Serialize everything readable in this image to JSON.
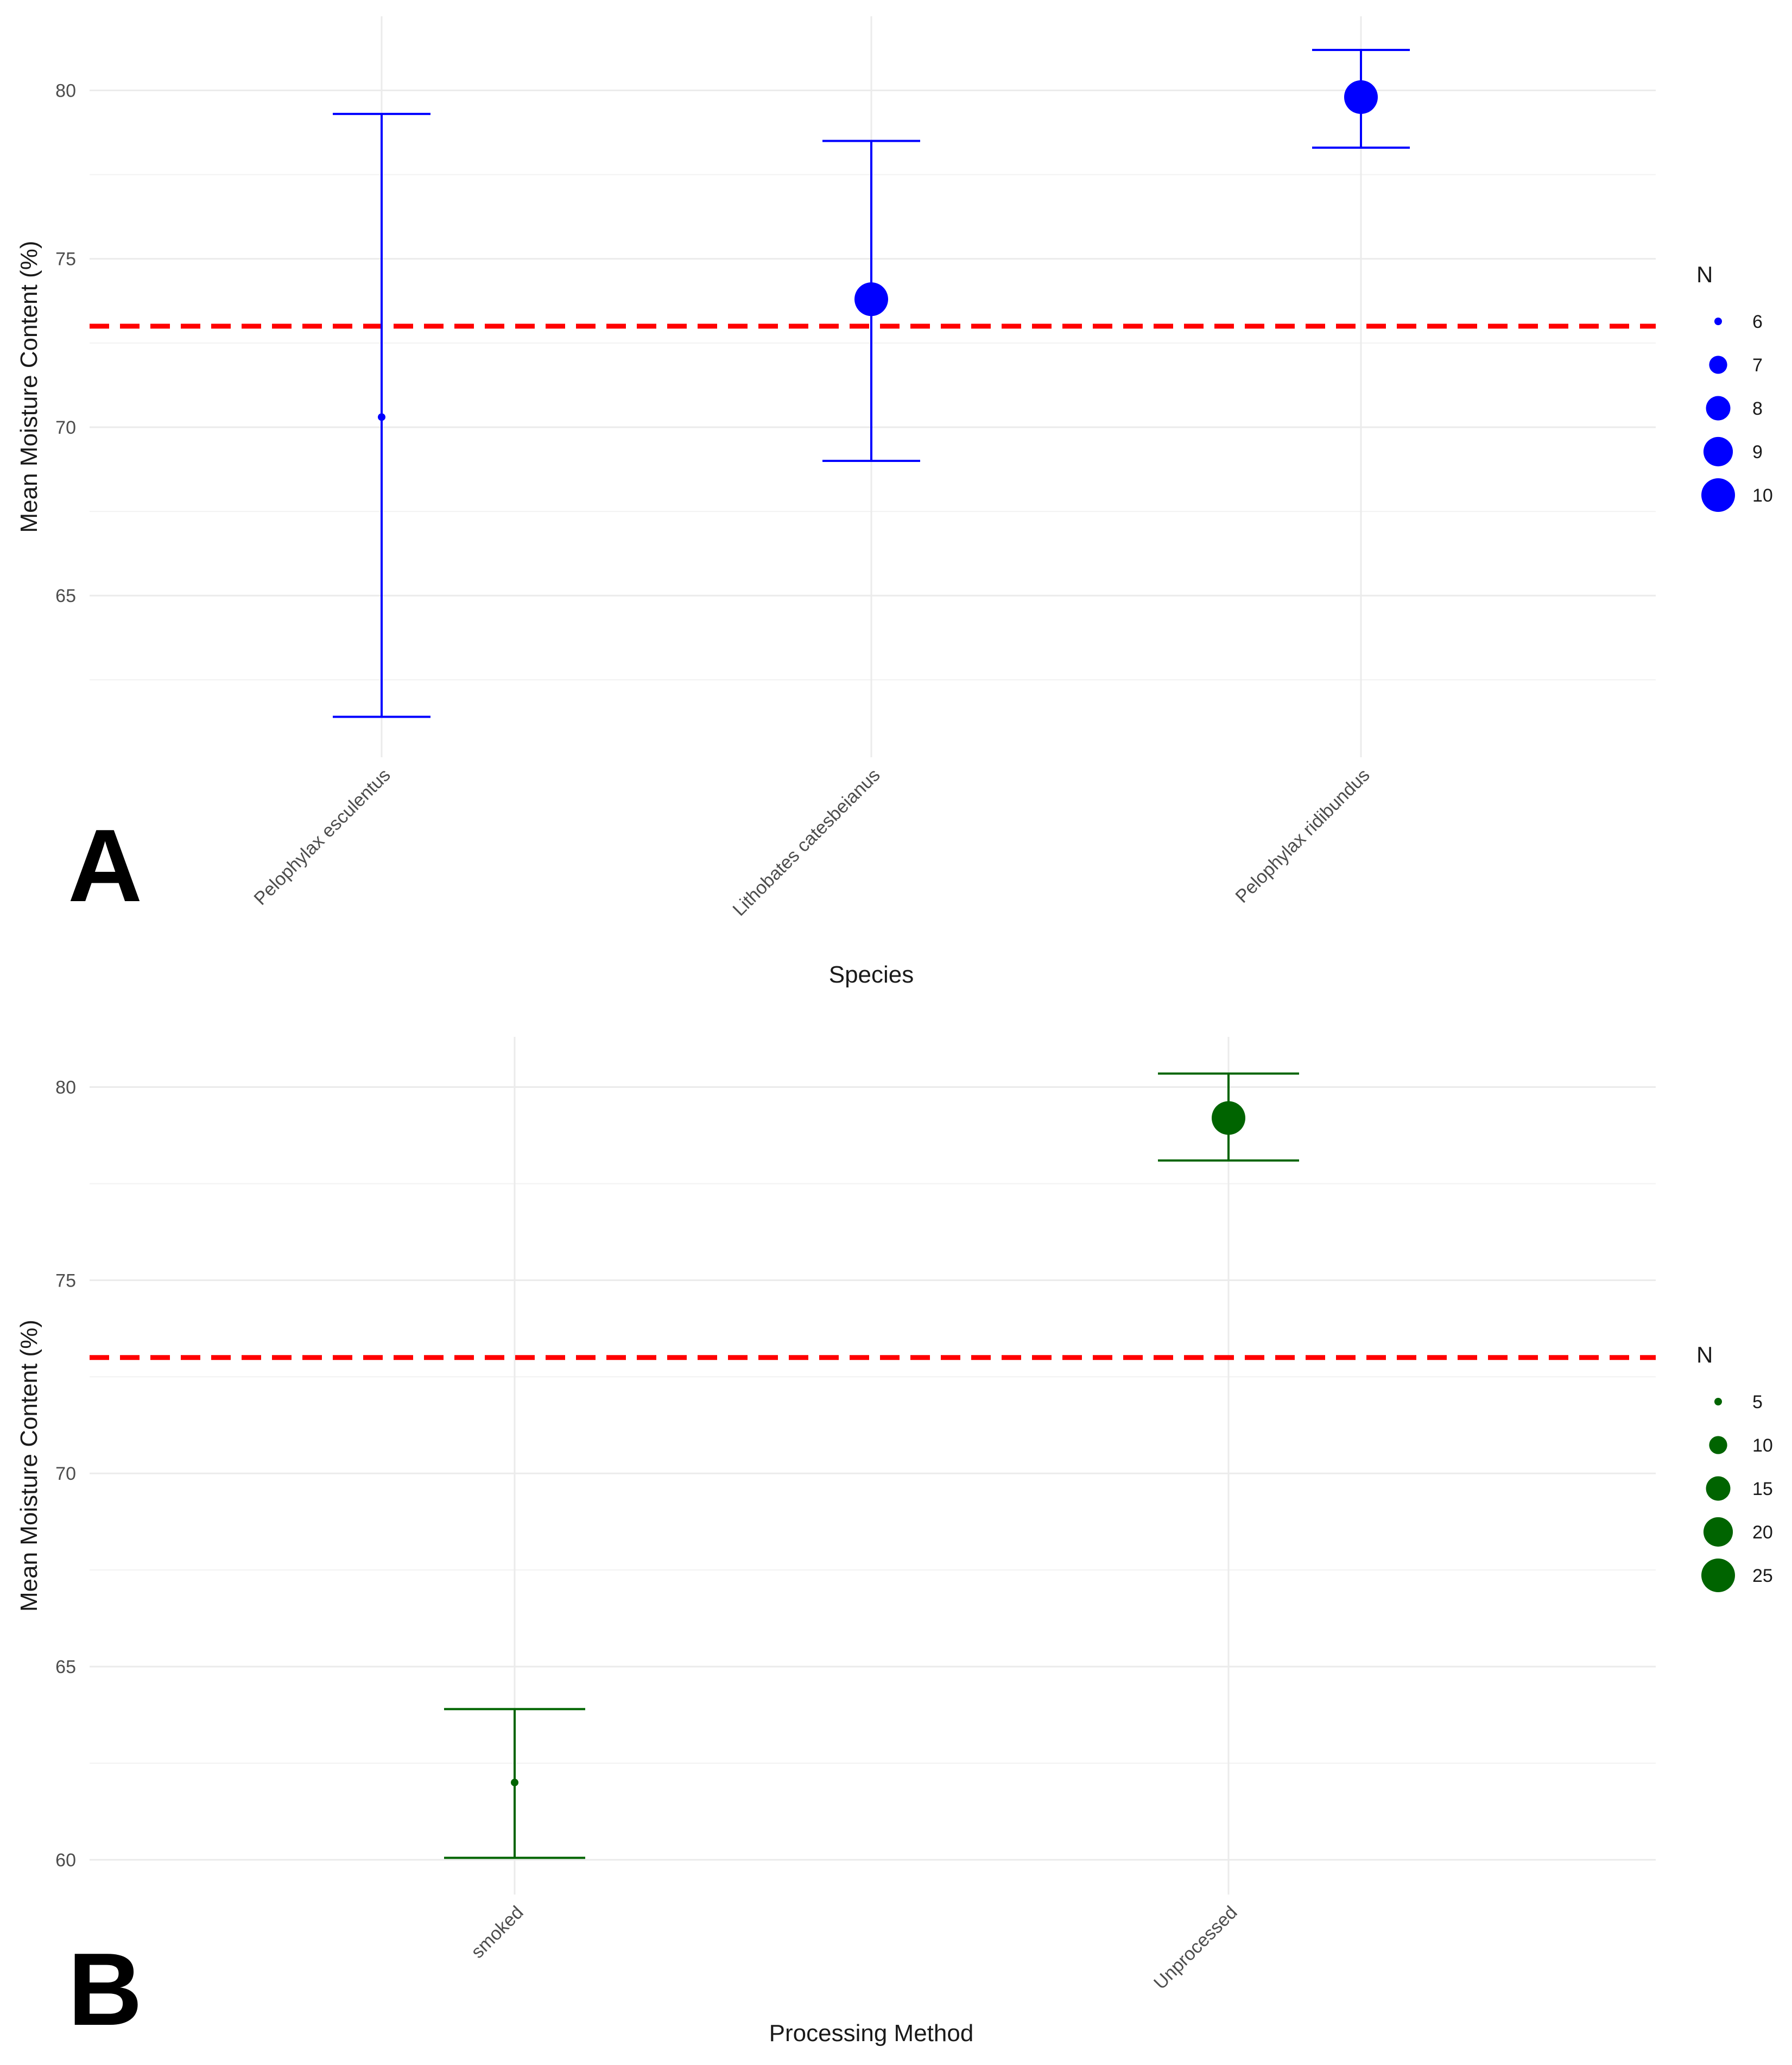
{
  "chart_data": [
    {
      "type": "errorbar",
      "panel_label": "A",
      "xlabel": "Species",
      "ylabel": "Mean Moisture Content (%)",
      "ylim": [
        60.2,
        82.2
      ],
      "yticks": [
        65,
        70,
        75,
        80
      ],
      "categories": [
        "Pelophylax esculentus",
        "Lithobates catesbeianus",
        "Pelophylax ridibundus"
      ],
      "points": [
        {
          "category": "Pelophylax esculentus",
          "mean": 70.3,
          "lower": 61.4,
          "upper": 79.3,
          "n": 6
        },
        {
          "category": "Lithobates catesbeianus",
          "mean": 73.8,
          "lower": 69.0,
          "upper": 78.5,
          "n": 10
        },
        {
          "category": "Pelophylax ridibundus",
          "mean": 79.8,
          "lower": 78.3,
          "upper": 81.2,
          "n": 10
        }
      ],
      "reference_line": {
        "y": 73.0,
        "color": "#ff0000",
        "style": "dashed"
      },
      "point_color": "#0000ff",
      "legend": {
        "title": "N",
        "placement": "right",
        "values": [
          6,
          7,
          8,
          9,
          10
        ]
      },
      "grid": true
    },
    {
      "type": "errorbar",
      "panel_label": "B",
      "xlabel": "Processing Method",
      "ylabel": "Mean Moisture Content (%)",
      "ylim": [
        59.1,
        81.3
      ],
      "yticks": [
        60,
        65,
        70,
        75,
        80
      ],
      "categories": [
        "smoked",
        "Unprocessed"
      ],
      "points": [
        {
          "category": "smoked",
          "mean": 62.0,
          "lower": 60.05,
          "upper": 63.9,
          "n": 2
        },
        {
          "category": "Unprocessed",
          "mean": 79.2,
          "lower": 78.1,
          "upper": 80.35,
          "n": 27
        }
      ],
      "reference_line": {
        "y": 73.0,
        "color": "#ff0000",
        "style": "dashed"
      },
      "point_color": "#006400",
      "legend": {
        "title": "N",
        "placement": "right",
        "values": [
          5,
          10,
          15,
          20,
          25
        ]
      },
      "grid": true
    }
  ]
}
